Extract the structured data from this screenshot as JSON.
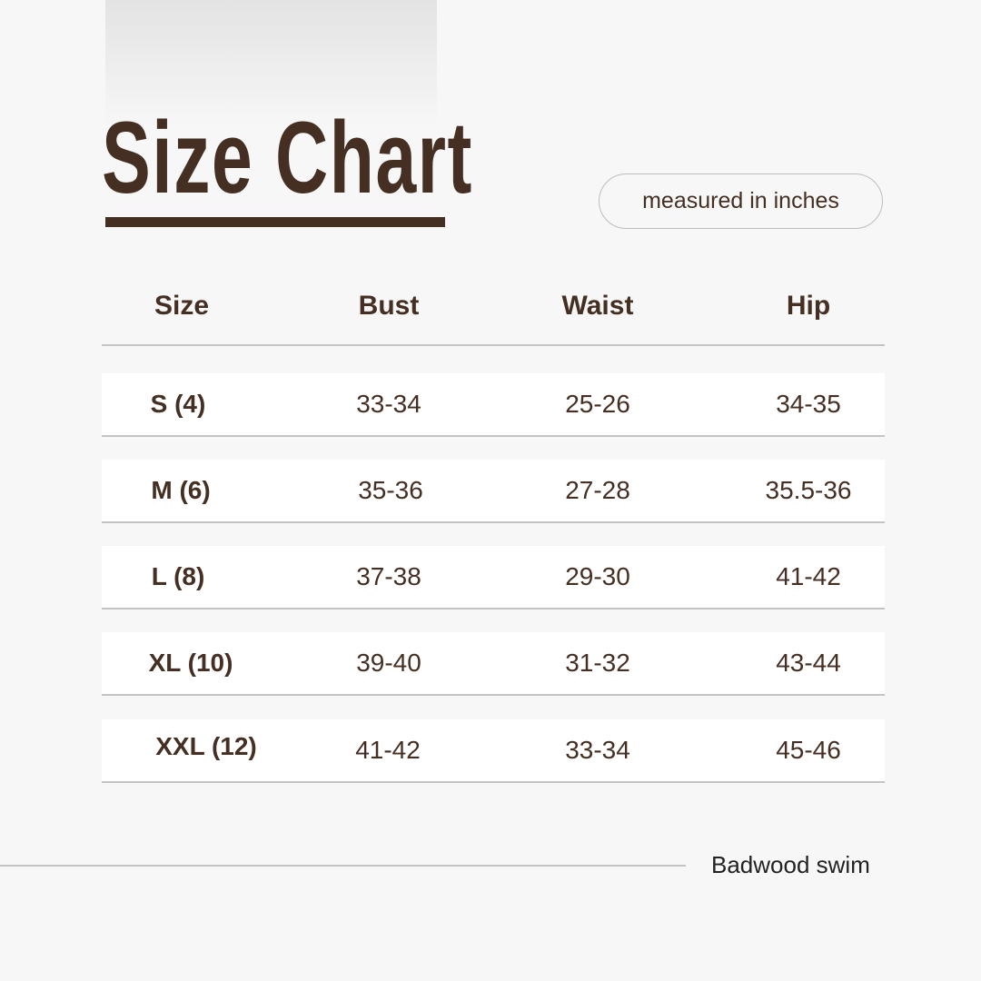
{
  "title": "Size Chart",
  "unit_note": "measured in inches",
  "headers": [
    "Size",
    "Bust",
    "Waist",
    "Hip"
  ],
  "rows": [
    [
      "S (4)",
      "33-34",
      "25-26",
      "34-35"
    ],
    [
      "M (6)",
      "35-36",
      "27-28",
      "35.5-36"
    ],
    [
      "L (8)",
      "37-38",
      "29-30",
      "41-42"
    ],
    [
      "XL (10)",
      "39-40",
      "31-32",
      "43-44"
    ],
    [
      "XXL (12)",
      "41-42",
      "33-34",
      "45-46"
    ]
  ],
  "brand": "Badwood swim",
  "colors": {
    "accent": "#452f22",
    "background": "#f7f7f7"
  }
}
